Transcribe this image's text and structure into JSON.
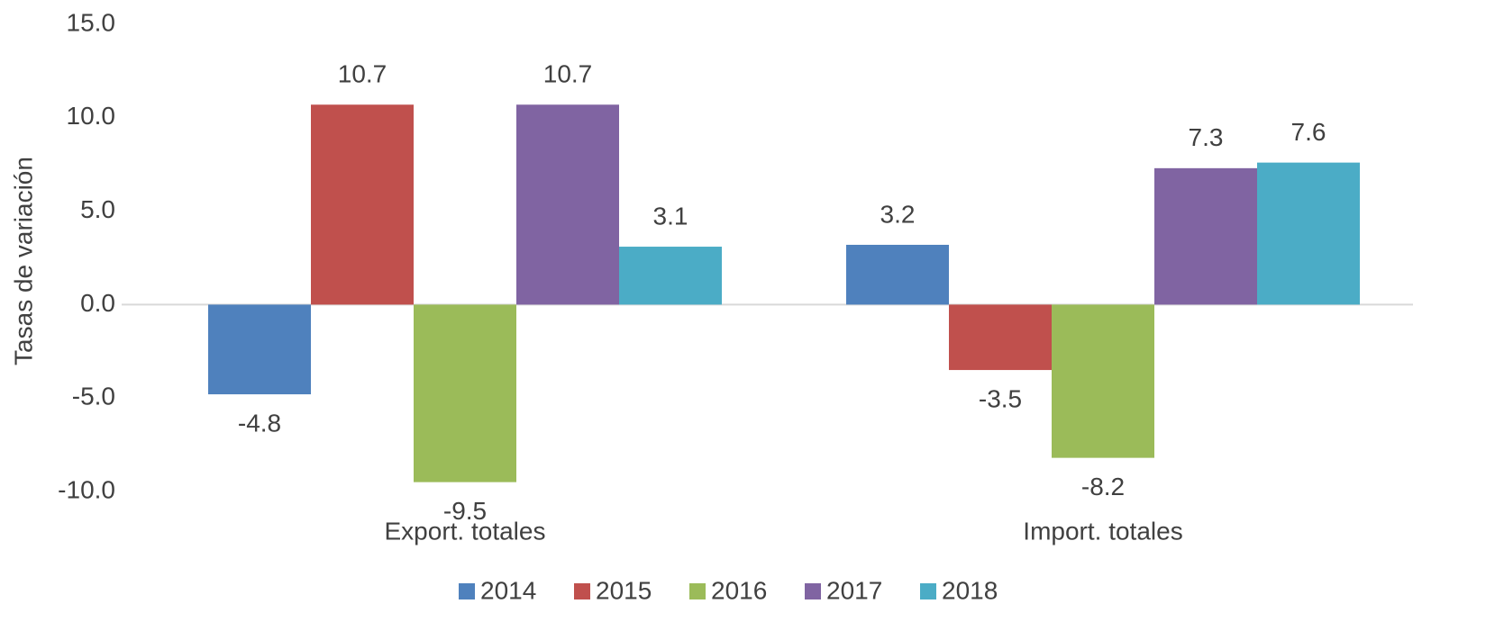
{
  "chart_data": {
    "type": "bar",
    "y_label": "Tasas de variación",
    "categories": [
      "Export. totales",
      "Import. totales"
    ],
    "series": [
      {
        "name": "2014",
        "color": "#4f81bd",
        "values": [
          -4.8,
          3.2
        ]
      },
      {
        "name": "2015",
        "color": "#c0504d",
        "values": [
          10.7,
          -3.5
        ]
      },
      {
        "name": "2016",
        "color": "#9bbb59",
        "values": [
          -9.5,
          -8.2
        ]
      },
      {
        "name": "2017",
        "color": "#8064a2",
        "values": [
          10.7,
          7.3
        ]
      },
      {
        "name": "2018",
        "color": "#4bacc6",
        "values": [
          3.1,
          7.6
        ]
      }
    ],
    "ylim": [
      -10,
      15
    ],
    "yticks": [
      {
        "value": -10,
        "label": "-10.0"
      },
      {
        "value": -5,
        "label": "-5.0"
      },
      {
        "value": 0,
        "label": "0.0"
      },
      {
        "value": 5,
        "label": "5.0"
      },
      {
        "value": 10,
        "label": "10.0"
      },
      {
        "value": 15,
        "label": "15.0"
      }
    ],
    "legend": "bottom"
  }
}
